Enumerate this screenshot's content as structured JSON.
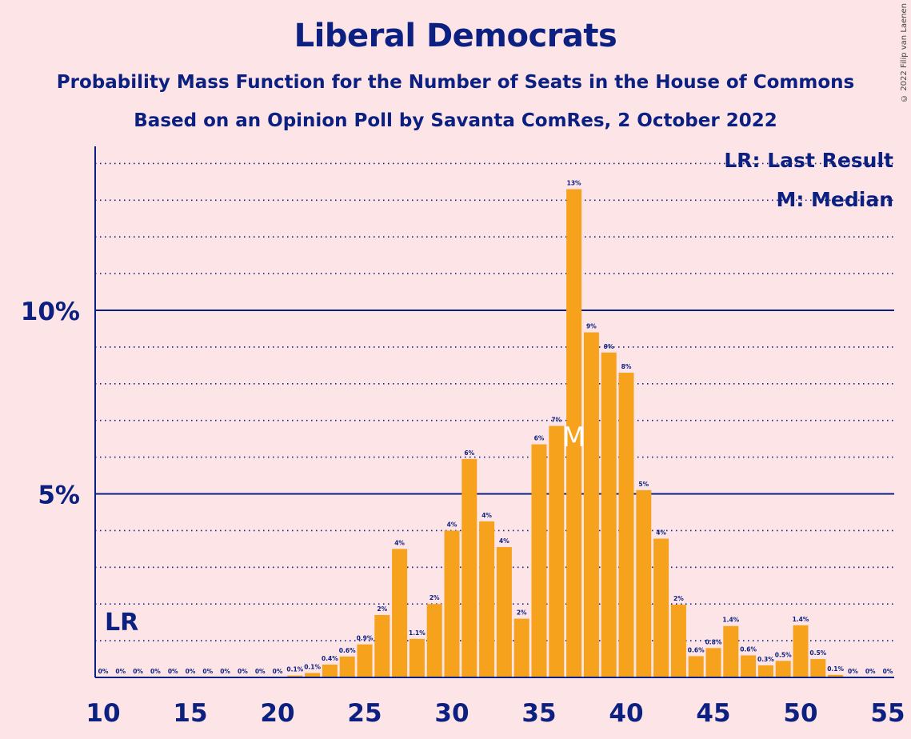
{
  "title": "Liberal Democrats",
  "subtitle": "Probability Mass Function for the Number of Seats in the House of Commons",
  "subtitle2": "Based on an Opinion Poll by Savanta ComRes, 2 October 2022",
  "copyright": "© 2022 Filip van Laenen",
  "legend": {
    "lr": "LR: Last Result",
    "median": "M: Median"
  },
  "colors": {
    "background": "#fde4e7",
    "bar": "#f7a21d",
    "text": "#0b2080"
  },
  "chart_data": {
    "type": "bar",
    "xlabel": "",
    "ylabel": "",
    "xlim": [
      10,
      55
    ],
    "ylim": [
      0,
      14.5
    ],
    "x_ticks": [
      10,
      15,
      20,
      25,
      30,
      35,
      40,
      45,
      50,
      55
    ],
    "y_ticks": [
      {
        "value": 5,
        "label": "5%"
      },
      {
        "value": 10,
        "label": "10%"
      }
    ],
    "last_result": {
      "seat": 11,
      "label": "LR"
    },
    "median": {
      "seat": 37,
      "label": "M"
    },
    "bars": [
      {
        "x": 10,
        "value": 0,
        "label": "0%"
      },
      {
        "x": 11,
        "value": 0,
        "label": "0%"
      },
      {
        "x": 12,
        "value": 0,
        "label": "0%"
      },
      {
        "x": 13,
        "value": 0,
        "label": "0%"
      },
      {
        "x": 14,
        "value": 0,
        "label": "0%"
      },
      {
        "x": 15,
        "value": 0,
        "label": "0%"
      },
      {
        "x": 16,
        "value": 0,
        "label": "0%"
      },
      {
        "x": 17,
        "value": 0,
        "label": "0%"
      },
      {
        "x": 18,
        "value": 0,
        "label": "0%"
      },
      {
        "x": 19,
        "value": 0,
        "label": "0%"
      },
      {
        "x": 20,
        "value": 0,
        "label": "0%"
      },
      {
        "x": 21,
        "value": 0.05,
        "label": "0.1%"
      },
      {
        "x": 22,
        "value": 0.12,
        "label": "0.1%"
      },
      {
        "x": 23,
        "value": 0.35,
        "label": "0.4%"
      },
      {
        "x": 24,
        "value": 0.57,
        "label": "0.6%"
      },
      {
        "x": 25,
        "value": 0.9,
        "label": "0.9%"
      },
      {
        "x": 26,
        "value": 1.7,
        "label": "2%"
      },
      {
        "x": 27,
        "value": 3.5,
        "label": "4%"
      },
      {
        "x": 28,
        "value": 1.05,
        "label": "1.1%"
      },
      {
        "x": 29,
        "value": 2.0,
        "label": "2%"
      },
      {
        "x": 30,
        "value": 4.0,
        "label": "4%"
      },
      {
        "x": 31,
        "value": 5.95,
        "label": "6%"
      },
      {
        "x": 32,
        "value": 4.25,
        "label": "4%"
      },
      {
        "x": 33,
        "value": 3.55,
        "label": "4%"
      },
      {
        "x": 34,
        "value": 1.6,
        "label": "2%"
      },
      {
        "x": 35,
        "value": 6.35,
        "label": "6%"
      },
      {
        "x": 36,
        "value": 6.85,
        "label": "7%"
      },
      {
        "x": 37,
        "value": 13.3,
        "label": "13%"
      },
      {
        "x": 38,
        "value": 9.4,
        "label": "9%"
      },
      {
        "x": 39,
        "value": 8.85,
        "label": "9%"
      },
      {
        "x": 40,
        "value": 8.3,
        "label": "8%"
      },
      {
        "x": 41,
        "value": 5.1,
        "label": "5%"
      },
      {
        "x": 42,
        "value": 3.78,
        "label": "4%"
      },
      {
        "x": 43,
        "value": 1.98,
        "label": "2%"
      },
      {
        "x": 44,
        "value": 0.58,
        "label": "0.6%"
      },
      {
        "x": 45,
        "value": 0.8,
        "label": "0.8%"
      },
      {
        "x": 46,
        "value": 1.4,
        "label": "1.4%"
      },
      {
        "x": 47,
        "value": 0.6,
        "label": "0.6%"
      },
      {
        "x": 48,
        "value": 0.33,
        "label": "0.3%"
      },
      {
        "x": 49,
        "value": 0.45,
        "label": "0.5%"
      },
      {
        "x": 50,
        "value": 1.42,
        "label": "1.4%"
      },
      {
        "x": 51,
        "value": 0.5,
        "label": "0.5%"
      },
      {
        "x": 52,
        "value": 0.07,
        "label": "0.1%"
      },
      {
        "x": 53,
        "value": 0,
        "label": "0%"
      },
      {
        "x": 54,
        "value": 0,
        "label": "0%"
      },
      {
        "x": 55,
        "value": 0,
        "label": "0%"
      }
    ]
  }
}
